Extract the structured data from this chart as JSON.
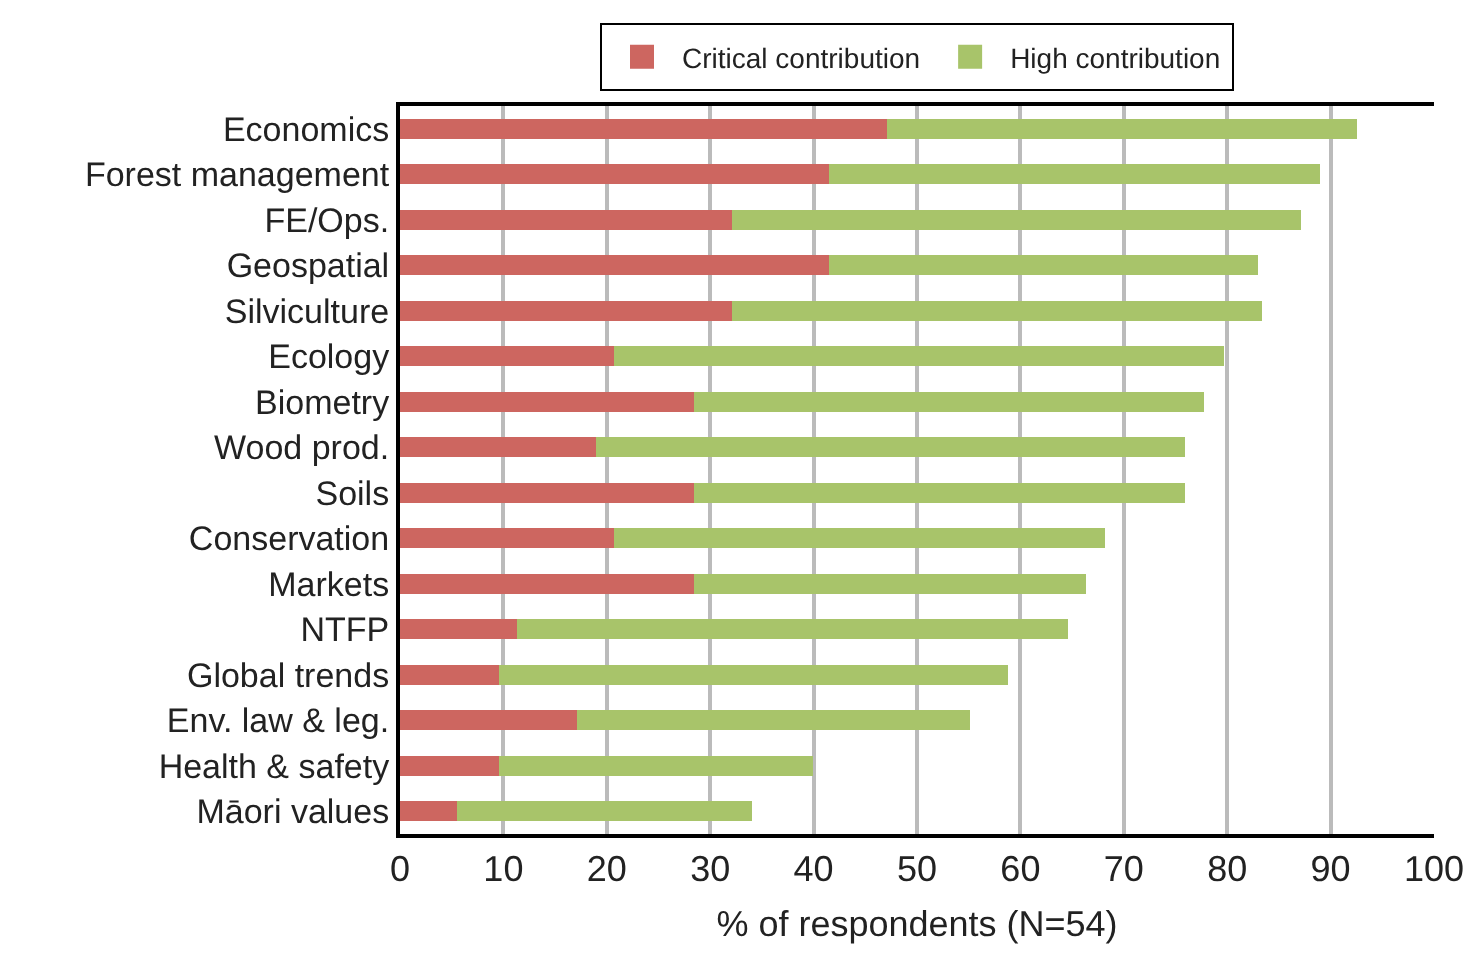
{
  "chart_data": {
    "type": "bar",
    "orientation": "horizontal",
    "stacked": true,
    "categories": [
      "Economics",
      "Forest management",
      "FE/Ops.",
      "Geospatial",
      "Silviculture",
      "Ecology",
      "Biometry",
      "Wood prod.",
      "Soils",
      "Conservation",
      "Markets",
      "NTFP",
      "Global trends",
      "Env. law & leg.",
      "Health & safety",
      "Māori values"
    ],
    "series": [
      {
        "name": "Critical contribution",
        "color": "#cd6660",
        "values": [
          47.1,
          41.5,
          32.1,
          41.5,
          32.1,
          20.7,
          28.4,
          19.0,
          28.4,
          20.7,
          28.4,
          11.3,
          9.6,
          17.1,
          9.6,
          5.5
        ]
      },
      {
        "name": "High contribution",
        "color": "#a8c46a",
        "values": [
          45.5,
          47.5,
          55.0,
          41.5,
          51.3,
          59.0,
          49.4,
          56.9,
          47.5,
          47.5,
          37.9,
          53.3,
          49.2,
          38.0,
          30.3,
          28.5
        ]
      }
    ],
    "xlabel": "% of respondents (N=54)",
    "xlim": [
      0,
      100
    ],
    "xticks": [
      0,
      10,
      20,
      30,
      40,
      50,
      60,
      70,
      80,
      90,
      100
    ],
    "grid": "x",
    "legend": "top"
  }
}
